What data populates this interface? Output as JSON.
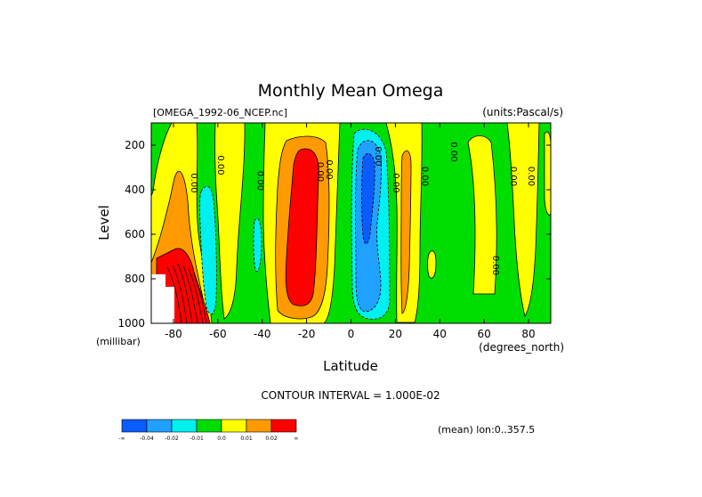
{
  "chart_data": {
    "type": "heatmap",
    "title": "Monthly Mean Omega",
    "dataset": "[OMEGA_1992-06_NCEP.nc]",
    "units": "(units:Pascal/s)",
    "xlabel": "Latitude",
    "x_units": "(degrees_north)",
    "ylabel": "Level",
    "y_units": "(millibar)",
    "xlim": [
      -90,
      90
    ],
    "ylim": [
      1000,
      100
    ],
    "x_ticks": [
      -80,
      -60,
      -40,
      -20,
      0,
      20,
      40,
      60,
      80
    ],
    "y_ticks": [
      200,
      400,
      600,
      800,
      1000
    ],
    "contour_interval_text": "CONTOUR INTERVAL = 1.000E-02",
    "mean_text": "(mean) lon:0..357.5",
    "legend": {
      "colors": [
        "#0a5cff",
        "#20a0ff",
        "#00f0f0",
        "#00dd00",
        "#ffff00",
        "#ff9a00",
        "#ff0000"
      ],
      "labels": [
        "-∞",
        "-0.04",
        "-0.02",
        "-0.01",
        "0.0",
        "0.01",
        "0.02",
        "∞"
      ]
    },
    "contour_labels": [
      {
        "text": "0.00",
        "lat": -72,
        "lev": 370
      },
      {
        "text": "0.00",
        "lat": -60,
        "lev": 290
      },
      {
        "text": "0.00",
        "lat": -42,
        "lev": 360
      },
      {
        "text": "0.00",
        "lat": -15,
        "lev": 320
      },
      {
        "text": "0.00",
        "lat": -11,
        "lev": 310
      },
      {
        "text": "0.00",
        "lat": 11,
        "lev": 250
      },
      {
        "text": "0.00",
        "lat": 19,
        "lev": 370
      },
      {
        "text": "0.00",
        "lat": 32,
        "lev": 340
      },
      {
        "text": "0.00",
        "lat": 45,
        "lev": 230
      },
      {
        "text": "0.00",
        "lat": 64,
        "lev": 740
      },
      {
        "text": "0.00",
        "lat": 72,
        "lev": 340
      },
      {
        "text": "0.00",
        "lat": 80,
        "lev": 340
      }
    ]
  }
}
